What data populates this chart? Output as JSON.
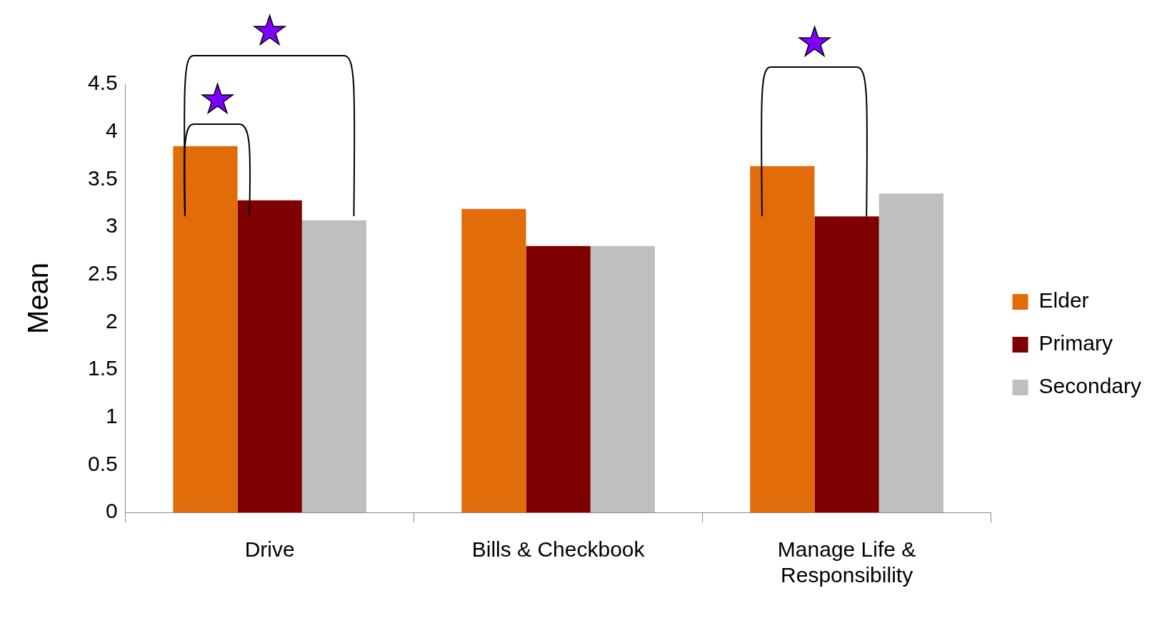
{
  "chart_data": {
    "type": "bar",
    "ylabel": "Mean",
    "categories": [
      "Drive",
      "Bills & Checkbook",
      "Manage Life & Responsibility"
    ],
    "series": [
      {
        "name": "Elder",
        "color": "#e36c0a",
        "values": [
          3.85,
          3.19,
          3.64
        ]
      },
      {
        "name": "Primary",
        "color": "#7f0000",
        "values": [
          3.28,
          2.8,
          3.11
        ]
      },
      {
        "name": "Secondary",
        "color": "#bfbfbf",
        "values": [
          3.07,
          2.8,
          3.35
        ]
      }
    ],
    "ylim": [
      0,
      4.5
    ],
    "yticks": [
      0,
      0.5,
      1,
      1.5,
      2,
      2.5,
      3,
      3.5,
      4,
      4.5
    ],
    "grid": false,
    "legend": "right",
    "annotations": [
      "★",
      "★",
      "★"
    ]
  }
}
